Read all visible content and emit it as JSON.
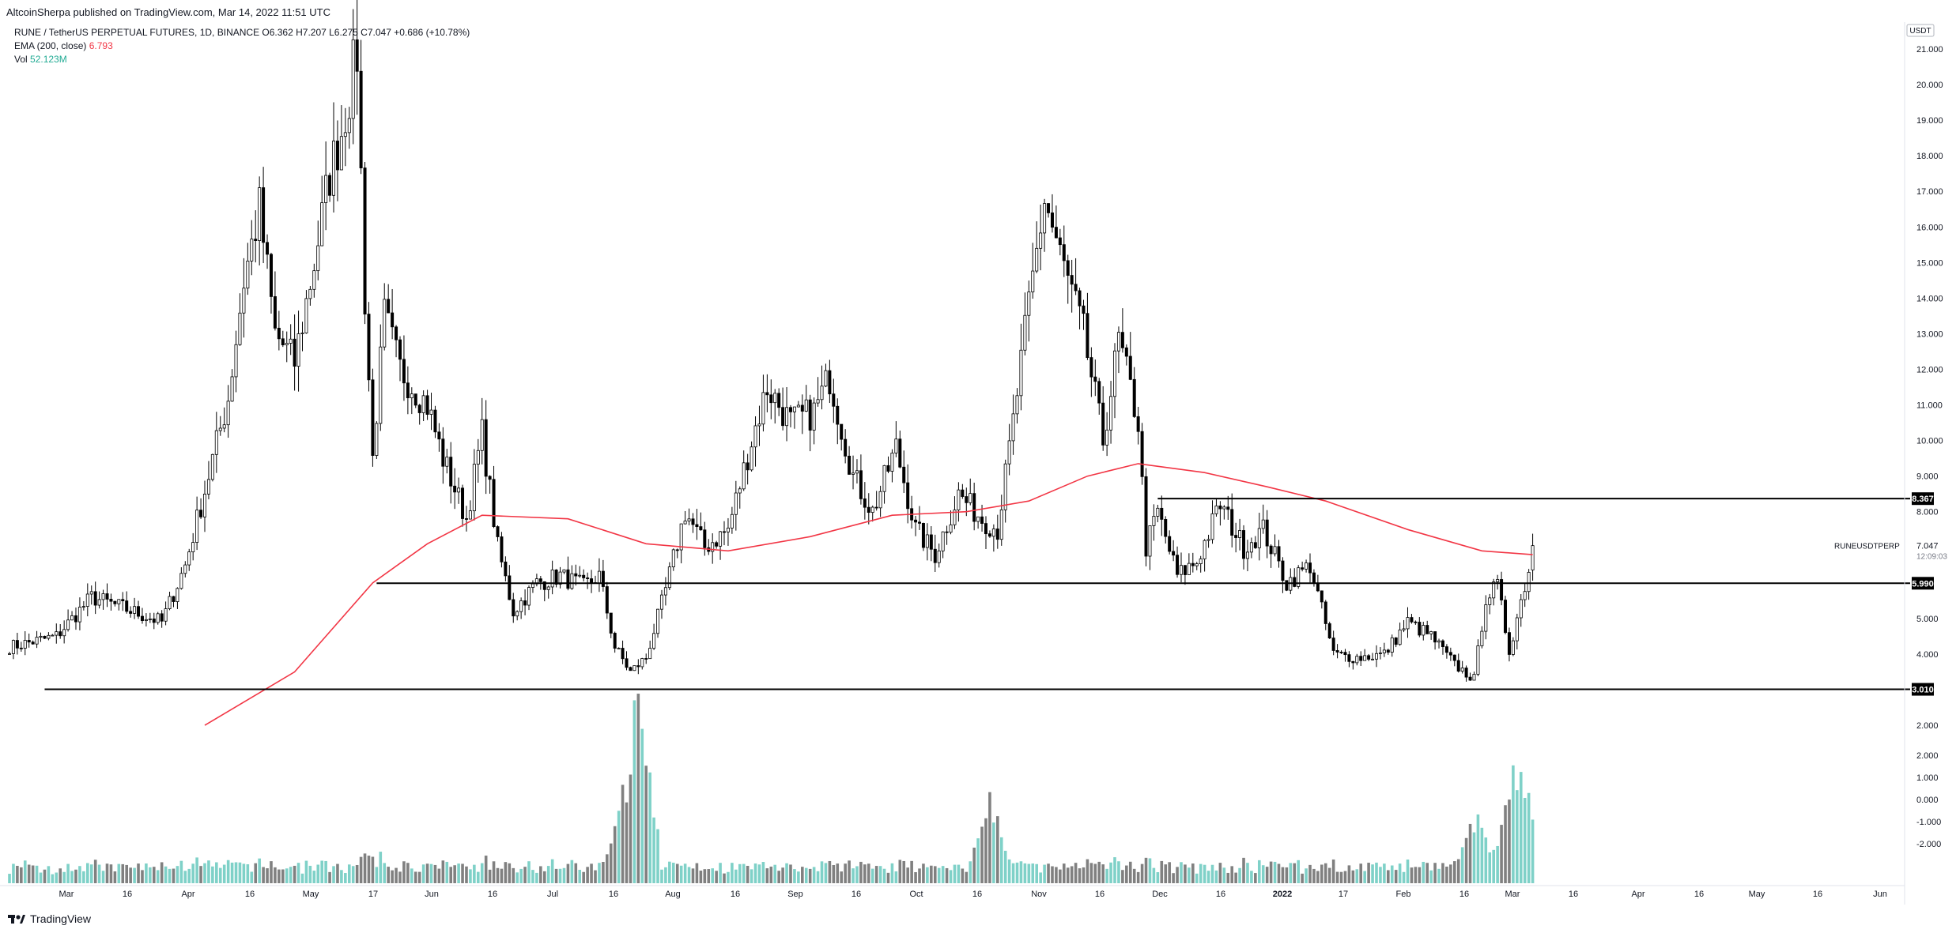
{
  "header": {
    "published": "AltcoinSherpa published on TradingView.com, Mar 14, 2022 11:51 UTC"
  },
  "legend": {
    "symbol_line": "RUNE / TetherUS PERPETUAL FUTURES, 1D, BINANCE  O6.362  H7.207  L6.275  C7.047  +0.686 (+10.78%)",
    "ema_label": "EMA (200, close)",
    "ema_value": "6.793",
    "vol_label": "Vol",
    "vol_value": "52.123M"
  },
  "colors": {
    "up": "#000000",
    "down": "#000000",
    "ema": "#f23645",
    "vol_up": "#7fd1c8",
    "vol_down": "#808080"
  },
  "footer": {
    "logo_text": "TradingView"
  },
  "chart_data": {
    "type": "candlestick",
    "symbol": "RUNEUSDTPERP",
    "timeframe": "1D",
    "y_unit": "USDT",
    "ylim": [
      1.9,
      21.3
    ],
    "y_ticks": [
      "21.000",
      "20.000",
      "19.000",
      "18.000",
      "17.000",
      "16.000",
      "15.000",
      "14.000",
      "13.000",
      "12.000",
      "11.000",
      "10.000",
      "9.000",
      "8.000",
      "5.000",
      "4.000",
      "2.000"
    ],
    "vol_ticks": [
      "2.000",
      "1.000",
      "0.000",
      "-1.000",
      "-2.000"
    ],
    "x_ticks": [
      "Mar",
      "16",
      "Apr",
      "16",
      "May",
      "17",
      "Jun",
      "16",
      "Jul",
      "16",
      "Aug",
      "16",
      "Sep",
      "16",
      "Oct",
      "16",
      "Nov",
      "16",
      "Dec",
      "16",
      "2022",
      "17",
      "Feb",
      "16",
      "Mar",
      "16",
      "Apr",
      "16",
      "May",
      "16",
      "Jun"
    ],
    "x_range": [
      "2021-02-17",
      "2022-06-15"
    ],
    "close_path": [
      [
        "2021-02-17",
        4.2
      ],
      [
        "2021-03-01",
        4.5
      ],
      [
        "2021-03-10",
        5.6
      ],
      [
        "2021-03-18",
        5.3
      ],
      [
        "2021-03-28",
        4.9
      ],
      [
        "2021-04-03",
        6.5
      ],
      [
        "2021-04-08",
        8.6
      ],
      [
        "2021-04-14",
        11.2
      ],
      [
        "2021-04-18",
        14.5
      ],
      [
        "2021-04-22",
        16.5
      ],
      [
        "2021-04-26",
        13.0
      ],
      [
        "2021-05-01",
        12.2
      ],
      [
        "2021-05-06",
        15.0
      ],
      [
        "2021-05-10",
        17.5
      ],
      [
        "2021-05-13",
        18.7
      ],
      [
        "2021-05-17",
        20.9
      ],
      [
        "2021-05-19",
        14.0
      ],
      [
        "2021-05-21",
        9.5
      ],
      [
        "2021-05-24",
        13.5
      ],
      [
        "2021-05-28",
        12.0
      ],
      [
        "2021-06-04",
        11.0
      ],
      [
        "2021-06-08",
        9.5
      ],
      [
        "2021-06-14",
        7.8
      ],
      [
        "2021-06-18",
        10.2
      ],
      [
        "2021-06-22",
        7.0
      ],
      [
        "2021-06-26",
        5.2
      ],
      [
        "2021-07-02",
        6.0
      ],
      [
        "2021-07-08",
        6.2
      ],
      [
        "2021-07-14",
        5.9
      ],
      [
        "2021-07-18",
        6.2
      ],
      [
        "2021-07-22",
        4.2
      ],
      [
        "2021-07-26",
        3.5
      ],
      [
        "2021-07-30",
        3.9
      ],
      [
        "2021-08-04",
        5.8
      ],
      [
        "2021-08-09",
        8.0
      ],
      [
        "2021-08-14",
        7.0
      ],
      [
        "2021-08-20",
        7.5
      ],
      [
        "2021-08-26",
        10.0
      ],
      [
        "2021-08-30",
        11.5
      ],
      [
        "2021-09-05",
        10.5
      ],
      [
        "2021-09-11",
        10.8
      ],
      [
        "2021-09-15",
        11.8
      ],
      [
        "2021-09-21",
        9.0
      ],
      [
        "2021-09-26",
        8.0
      ],
      [
        "2021-10-02",
        9.8
      ],
      [
        "2021-10-07",
        7.5
      ],
      [
        "2021-10-12",
        6.8
      ],
      [
        "2021-10-18",
        8.5
      ],
      [
        "2021-10-24",
        7.8
      ],
      [
        "2021-10-28",
        7.5
      ],
      [
        "2021-11-01",
        10.5
      ],
      [
        "2021-11-05",
        13.8
      ],
      [
        "2021-11-09",
        16.8
      ],
      [
        "2021-11-13",
        15.2
      ],
      [
        "2021-11-19",
        13.0
      ],
      [
        "2021-11-24",
        10.0
      ],
      [
        "2021-11-28",
        12.8
      ],
      [
        "2021-12-03",
        10.5
      ],
      [
        "2021-12-05",
        7.0
      ],
      [
        "2021-12-08",
        8.0
      ],
      [
        "2021-12-13",
        6.2
      ],
      [
        "2021-12-18",
        6.6
      ],
      [
        "2021-12-24",
        8.2
      ],
      [
        "2021-12-30",
        7.0
      ],
      [
        "2022-01-04",
        7.5
      ],
      [
        "2022-01-10",
        6.0
      ],
      [
        "2022-01-16",
        6.5
      ],
      [
        "2022-01-22",
        4.0
      ],
      [
        "2022-01-28",
        3.9
      ],
      [
        "2022-02-04",
        4.0
      ],
      [
        "2022-02-10",
        4.9
      ],
      [
        "2022-02-16",
        4.5
      ],
      [
        "2022-02-22",
        3.7
      ],
      [
        "2022-02-27",
        3.3
      ],
      [
        "2022-03-02",
        5.6
      ],
      [
        "2022-03-05",
        5.9
      ],
      [
        "2022-03-08",
        4.1
      ],
      [
        "2022-03-11",
        5.5
      ],
      [
        "2022-03-13",
        6.4
      ],
      [
        "2022-03-14",
        7.047
      ]
    ],
    "ema": [
      [
        "2021-04-08",
        2.0
      ],
      [
        "2021-05-01",
        3.5
      ],
      [
        "2021-05-21",
        6.0
      ],
      [
        "2021-06-04",
        7.1
      ],
      [
        "2021-06-18",
        7.9
      ],
      [
        "2021-07-10",
        7.8
      ],
      [
        "2021-07-30",
        7.1
      ],
      [
        "2021-08-20",
        6.9
      ],
      [
        "2021-09-10",
        7.3
      ],
      [
        "2021-10-01",
        7.9
      ],
      [
        "2021-10-20",
        8.0
      ],
      [
        "2021-11-05",
        8.3
      ],
      [
        "2021-11-20",
        9.0
      ],
      [
        "2021-12-03",
        9.35
      ],
      [
        "2021-12-20",
        9.1
      ],
      [
        "2022-01-05",
        8.7
      ],
      [
        "2022-01-20",
        8.3
      ],
      [
        "2022-02-10",
        7.5
      ],
      [
        "2022-03-01",
        6.9
      ],
      [
        "2022-03-14",
        6.793
      ]
    ],
    "hlines": [
      {
        "label": "8.367",
        "value": 8.367,
        "from": "2021-12-08"
      },
      {
        "label": "5.990",
        "value": 5.99,
        "from": "2021-05-22"
      },
      {
        "label": "3.010",
        "value": 3.01,
        "from": "2021-02-26"
      }
    ],
    "last_price": {
      "label": "7.047",
      "countdown": "12:09:03",
      "symbol": "RUNEUSDTPERP"
    },
    "volume_spikes": [
      [
        "2021-07-25",
        0.55
      ],
      [
        "2021-07-28",
        1.0
      ],
      [
        "2021-10-26",
        0.45
      ],
      [
        "2022-02-28",
        0.38
      ],
      [
        "2022-03-10",
        0.62
      ],
      [
        "2022-03-12",
        0.55
      ]
    ]
  }
}
